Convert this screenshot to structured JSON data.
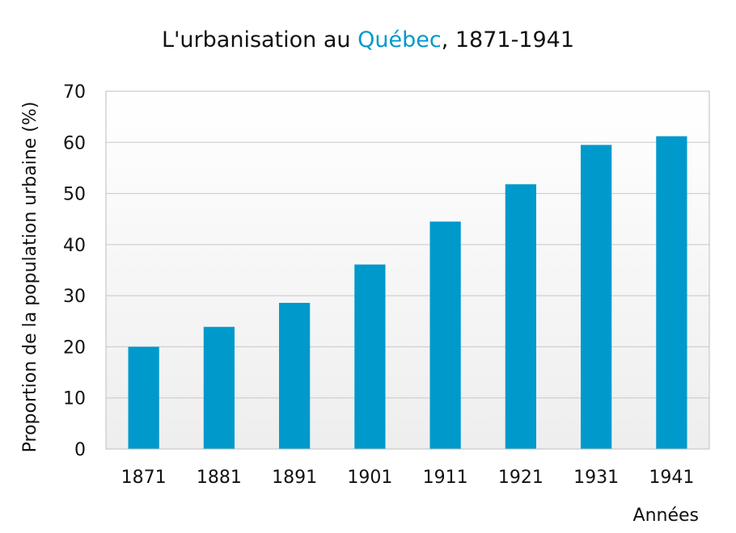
{
  "chart_data": {
    "type": "bar",
    "title": {
      "prefix": "L'urbanisation au ",
      "highlight": "Québec",
      "suffix": ", 1871-1941"
    },
    "xlabel": "Années",
    "ylabel": "Proportion de la population urbaine (%)",
    "categories": [
      "1871",
      "1881",
      "1891",
      "1901",
      "1911",
      "1921",
      "1931",
      "1941"
    ],
    "values": [
      20.0,
      23.9,
      28.6,
      36.1,
      44.5,
      51.8,
      59.5,
      61.2
    ],
    "ylim": [
      0,
      70
    ],
    "yticks": [
      0,
      10,
      20,
      30,
      40,
      50,
      60,
      70
    ],
    "grid": true,
    "colors": {
      "bar": "#0099cc",
      "highlight": "#0099cc",
      "plot_bg_top": "#ffffff",
      "plot_bg_bottom": "#eeeeee"
    }
  }
}
